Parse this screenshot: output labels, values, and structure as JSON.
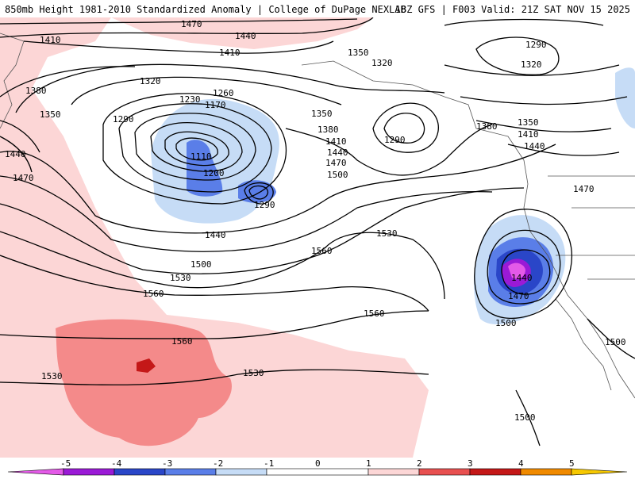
{
  "header": {
    "left": "850mb Height 1981-2010 Standardized Anomaly | College of DuPage NEXLAB",
    "right": "18Z GFS | F003 Valid: 21Z SAT NOV 15 2025"
  },
  "colors": {
    "neg5": "#e45ae8",
    "neg4": "#9a1ad6",
    "neg3": "#2a46c8",
    "neg2": "#5a7ee8",
    "neg1": "#c6dcf6",
    "zero": "#ffffff",
    "pos1": "#fcd6d6",
    "pos2": "#f48a8a",
    "pos3": "#e85050",
    "pos4": "#c41818",
    "pos5": "#f08a00",
    "pos6": "#f6c800"
  },
  "colorbar": {
    "ticks": [
      "-5",
      "-4",
      "-3",
      "-2",
      "-1",
      "0",
      "1",
      "2",
      "3",
      "4",
      "5"
    ]
  },
  "contour_labels": [
    "1470",
    "1440",
    "1410",
    "1350",
    "1320",
    "1290",
    "1320",
    "1410",
    "1380",
    "1350",
    "1320",
    "1260",
    "1230",
    "1170",
    "1290",
    "1350",
    "1110",
    "1200",
    "1290",
    "1380",
    "1410",
    "1440",
    "1470",
    "1500",
    "1290",
    "1380",
    "1350",
    "1410",
    "1440",
    "1470",
    "1440",
    "1470",
    "1440",
    "1530",
    "1560",
    "1500",
    "1530",
    "1560",
    "1440",
    "1470",
    "1500",
    "1560",
    "1560",
    "1530",
    "1530",
    "1500",
    "1500"
  ]
}
